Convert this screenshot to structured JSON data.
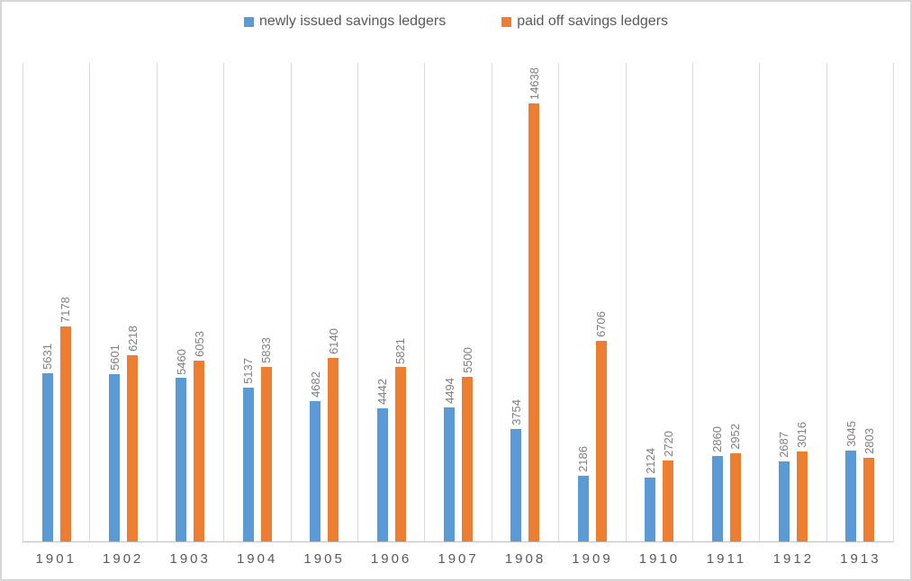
{
  "chart_data": {
    "type": "bar",
    "title": "",
    "xlabel": "",
    "ylabel": "",
    "categories": [
      "1901",
      "1902",
      "1903",
      "1904",
      "1905",
      "1906",
      "1907",
      "1908",
      "1909",
      "1910",
      "1911",
      "1912",
      "1913"
    ],
    "series": [
      {
        "name": "newly issued savings ledgers",
        "color": "#5B9BD5",
        "values": [
          5631,
          5601,
          5460,
          5137,
          4682,
          4442,
          4494,
          3754,
          2186,
          2124,
          2860,
          2687,
          3045
        ]
      },
      {
        "name": "paid off savings ledgers",
        "color": "#ED7D31",
        "values": [
          7178,
          6218,
          6053,
          5833,
          6140,
          5821,
          5500,
          14638,
          6706,
          2720,
          2952,
          3016,
          2803
        ]
      }
    ],
    "ylim": [
      0,
      16000
    ],
    "y_axis_labels_visible": false,
    "grid": "vertical-category-gridlines",
    "legend_position": "top-center",
    "data_labels": "values rotated 90deg above each bar"
  },
  "legend": {
    "items": [
      {
        "label": "newly issued savings ledgers",
        "color": "#5B9BD5"
      },
      {
        "label": "paid off savings ledgers",
        "color": "#ED7D31"
      }
    ]
  },
  "colors": {
    "series_blue": "#5B9BD5",
    "series_orange": "#ED7D31",
    "gridline": "#D9D9D9",
    "axis_line": "#BFBFBF",
    "data_label_text": "#7F7F7F",
    "axis_label_text": "#595959",
    "frame_border": "#D6D6D6",
    "background": "#FFFFFF"
  }
}
